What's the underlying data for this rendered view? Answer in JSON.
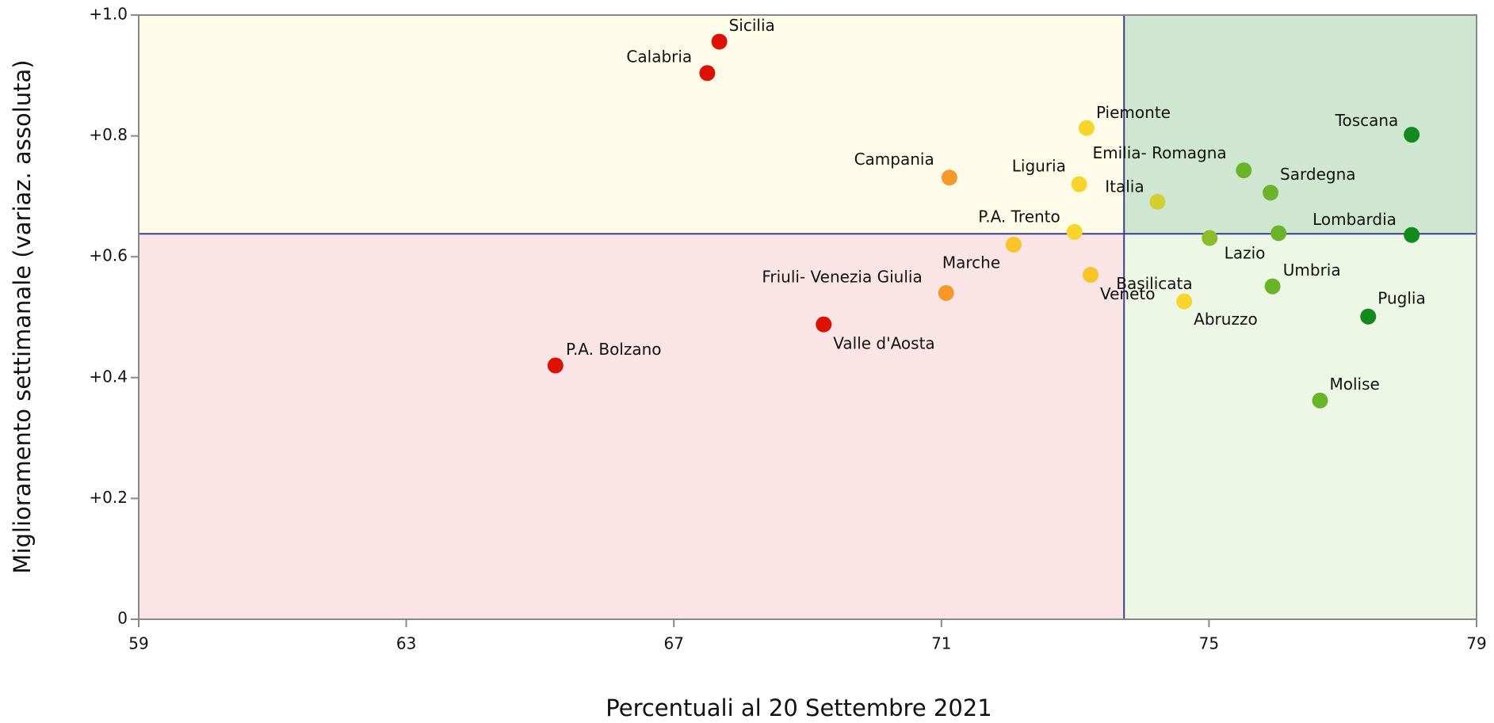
{
  "chart_data": {
    "type": "scatter",
    "x_label": "Percentuali al 20 Settembre 2021",
    "y_label": "Miglioramento settimanale (variaz. assoluta)",
    "xlim": [
      59,
      79
    ],
    "ylim": [
      0,
      1.0
    ],
    "xticks": [
      59,
      63,
      67,
      71,
      75,
      79
    ],
    "yticks": [
      0,
      {
        "value": 0.2,
        "label": "+0.2"
      },
      {
        "value": 0.4,
        "label": "+0.4"
      },
      {
        "value": 0.6,
        "label": "+0.6"
      },
      {
        "value": 0.8,
        "label": "+0.8"
      },
      {
        "value": 1.0,
        "label": "+1.0"
      }
    ],
    "reference_lines": {
      "x": 73.73,
      "y": 0.638,
      "color": "#3b3f8f"
    },
    "quadrant_colors": {
      "top_left": "#fefbe8",
      "top_right": "#cfe7d1",
      "bottom_left": "#fbe4e6",
      "bottom_right": "#eef6e6"
    },
    "points": [
      {
        "name": "Sicilia",
        "x": 67.68,
        "y": 0.956,
        "color": "#dd1100"
      },
      {
        "name": "Calabria",
        "x": 67.5,
        "y": 0.904,
        "color": "#dd1100"
      },
      {
        "name": "Piemonte",
        "x": 73.17,
        "y": 0.813,
        "color": "#f7d52a"
      },
      {
        "name": "Toscana",
        "x": 78.03,
        "y": 0.802,
        "color": "#128a1e"
      },
      {
        "name": "Campania",
        "x": 71.12,
        "y": 0.731,
        "color": "#f59a2a"
      },
      {
        "name": "Liguria",
        "x": 73.06,
        "y": 0.72,
        "color": "#f7d52a"
      },
      {
        "name": "Emilia- Romagna",
        "x": 75.52,
        "y": 0.743,
        "color": "#6ab42a"
      },
      {
        "name": "Sardegna",
        "x": 75.92,
        "y": 0.706,
        "color": "#6ab42a"
      },
      {
        "name": "Italia",
        "x": 74.23,
        "y": 0.691,
        "color": "#d4cf30"
      },
      {
        "name": "Lombardia",
        "x": 78.03,
        "y": 0.636,
        "color": "#128a1e"
      },
      {
        "name": "P.A. Trento",
        "x": 72.99,
        "y": 0.641,
        "color": "#f7d52a"
      },
      {
        "name": "Basilicata",
        "x": 75.01,
        "y": 0.631,
        "color": "#8bbd2a"
      },
      {
        "name": "Lazio",
        "x": 76.04,
        "y": 0.639,
        "color": "#6ab42a"
      },
      {
        "name": "Marche",
        "x": 72.08,
        "y": 0.62,
        "color": "#f7c52a"
      },
      {
        "name": "Friuli- Venezia Giulia",
        "x": 71.07,
        "y": 0.54,
        "color": "#f59a2a"
      },
      {
        "name": "Veneto",
        "x": 73.23,
        "y": 0.57,
        "color": "#f7c52a"
      },
      {
        "name": "Umbria",
        "x": 75.95,
        "y": 0.551,
        "color": "#6ab42a"
      },
      {
        "name": "Abruzzo",
        "x": 74.63,
        "y": 0.526,
        "color": "#f7d52a"
      },
      {
        "name": "Puglia",
        "x": 77.38,
        "y": 0.501,
        "color": "#128a1e"
      },
      {
        "name": "Valle d'Aosta",
        "x": 69.24,
        "y": 0.488,
        "color": "#dd1100"
      },
      {
        "name": "P.A. Bolzano",
        "x": 65.23,
        "y": 0.42,
        "color": "#dd1100"
      },
      {
        "name": "Molise",
        "x": 76.66,
        "y": 0.362,
        "color": "#6ab42a"
      }
    ]
  }
}
